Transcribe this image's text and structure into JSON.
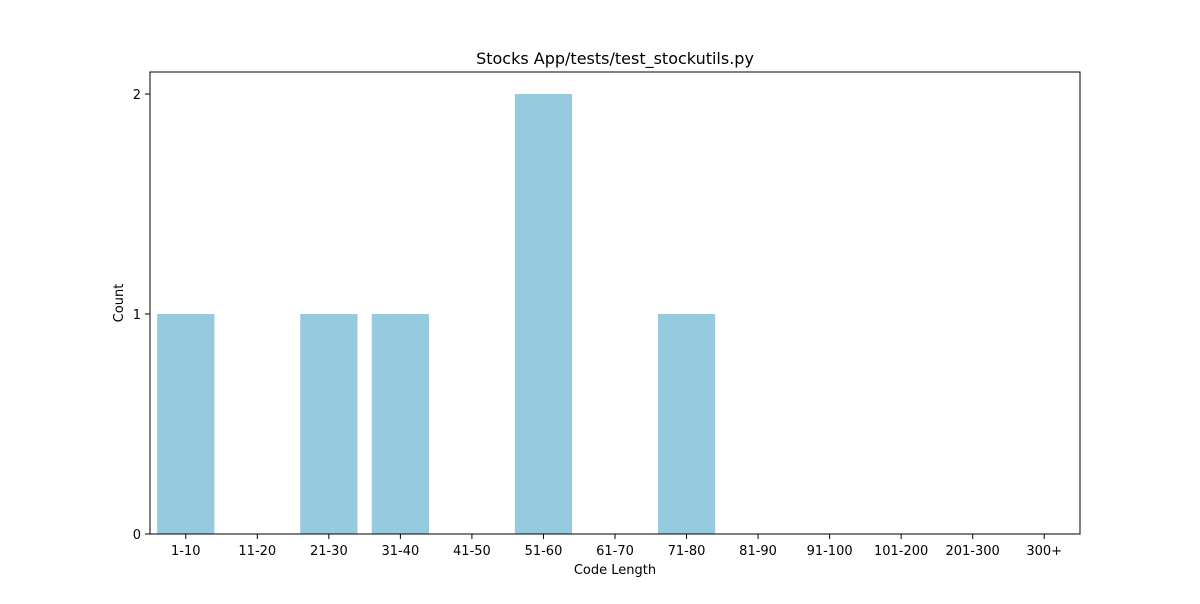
{
  "chart_data": {
    "type": "bar",
    "title": "Stocks App/tests/test_stockutils.py",
    "xlabel": "Code Length",
    "ylabel": "Count",
    "categories": [
      "1-10",
      "11-20",
      "21-30",
      "31-40",
      "41-50",
      "51-60",
      "61-70",
      "71-80",
      "81-90",
      "91-100",
      "101-200",
      "201-300",
      "300+"
    ],
    "values": [
      1,
      0,
      1,
      1,
      0,
      2,
      0,
      1,
      0,
      0,
      0,
      0,
      0
    ],
    "yticks": [
      0,
      1,
      2
    ],
    "ylim": [
      0,
      2.1
    ],
    "grid": false,
    "bar_color": "#96cadf"
  }
}
